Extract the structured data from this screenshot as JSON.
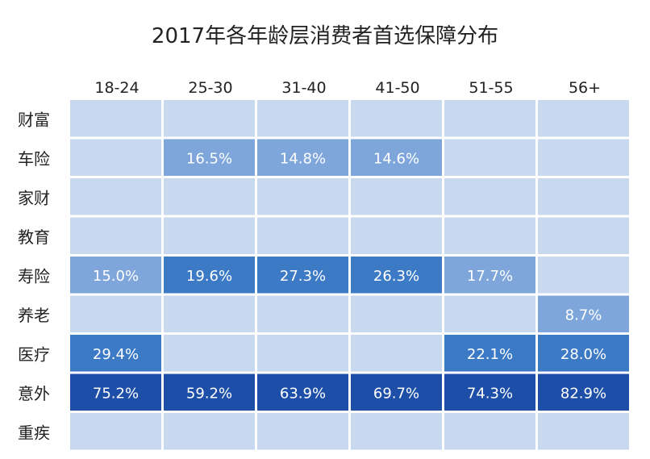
{
  "chart_data": {
    "type": "heatmap",
    "title": "2017年各年龄层消费者首选保障分布",
    "columns": [
      "18-24",
      "25-30",
      "31-40",
      "41-50",
      "51-55",
      "56+"
    ],
    "rows": [
      "财富",
      "车险",
      "家财",
      "教育",
      "寿险",
      "养老",
      "医疗",
      "意外",
      "重疾"
    ],
    "values": [
      [
        null,
        null,
        null,
        null,
        null,
        null
      ],
      [
        null,
        16.5,
        14.8,
        14.6,
        null,
        null
      ],
      [
        null,
        null,
        null,
        null,
        null,
        null
      ],
      [
        null,
        null,
        null,
        null,
        null,
        null
      ],
      [
        15.0,
        19.6,
        27.3,
        26.3,
        17.7,
        null
      ],
      [
        null,
        null,
        null,
        null,
        null,
        8.7
      ],
      [
        29.4,
        null,
        null,
        null,
        22.1,
        28.0
      ],
      [
        75.2,
        59.2,
        63.9,
        69.7,
        74.3,
        82.9
      ],
      [
        null,
        null,
        null,
        null,
        null,
        null
      ]
    ],
    "value_suffix": "%",
    "colors": {
      "empty": "#c8d8ee",
      "light": "#7ea6db",
      "medium": "#3c7ac6",
      "dark": "#1e4fa8",
      "label_text": "#ffffff",
      "axis_text": "#222222"
    }
  }
}
